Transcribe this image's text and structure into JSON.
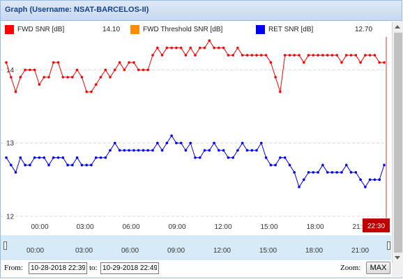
{
  "window": {
    "title": "Graph (Username: NSAT-BARCELOS-II)"
  },
  "legend": [
    {
      "name": "FWD SNR [dB]",
      "value": "14.10",
      "color": "#ff0000"
    },
    {
      "name": "FWD Threshold SNR [dB]",
      "value": "",
      "color": "#ff8c00"
    },
    {
      "name": "RET SNR [dB]",
      "value": "12.70",
      "color": "#0000ff"
    }
  ],
  "chart_data": {
    "type": "line",
    "ylim": [
      11.97,
      14.45
    ],
    "y_ticks": [
      "14",
      "13",
      "12"
    ],
    "x_tick_labels": [
      "00:00",
      "03:00",
      "06:00",
      "09:00",
      "12:00",
      "15:00",
      "18:00",
      "21:00"
    ],
    "cursor_label": "22:30",
    "grid": true,
    "series": [
      {
        "name": "FWD SNR [dB]",
        "color": "#ff0000",
        "x": [
          "20:00",
          "20:20",
          "20:40",
          "21:00",
          "21:20",
          "21:40",
          "22:00",
          "22:20",
          "22:40",
          "23:00",
          "23:20",
          "23:40",
          "00:00",
          "00:20",
          "00:40",
          "01:00",
          "01:20",
          "01:40",
          "02:00",
          "02:20",
          "02:40",
          "03:00",
          "03:20",
          "03:40",
          "04:00",
          "04:20",
          "04:40",
          "05:00",
          "05:20",
          "05:40",
          "06:00",
          "06:20",
          "06:40",
          "07:00",
          "07:20",
          "07:40",
          "08:00",
          "08:20",
          "08:40",
          "09:00",
          "09:20",
          "09:40",
          "10:00",
          "10:20",
          "10:40",
          "11:00",
          "11:20",
          "11:40",
          "12:00",
          "12:20",
          "12:40",
          "13:00",
          "13:20",
          "13:40",
          "14:00",
          "14:20",
          "14:40",
          "15:00",
          "15:20",
          "15:40",
          "16:00",
          "16:20",
          "16:40",
          "17:00",
          "17:20",
          "17:40",
          "18:00",
          "18:20",
          "18:40",
          "19:00",
          "19:20",
          "19:40",
          "20:00",
          "20:20",
          "20:40",
          "21:00",
          "21:20",
          "21:40",
          "22:00",
          "22:20",
          "22:40"
        ],
        "values": [
          14.1,
          13.9,
          13.7,
          13.9,
          14.0,
          14.0,
          14.0,
          13.8,
          13.9,
          13.9,
          14.1,
          14.1,
          13.9,
          13.9,
          13.9,
          14.0,
          13.9,
          13.7,
          13.7,
          13.8,
          13.9,
          14.0,
          13.9,
          14.0,
          14.1,
          14.0,
          14.1,
          14.1,
          14.0,
          14.0,
          14.0,
          14.2,
          14.3,
          14.2,
          14.3,
          14.3,
          14.3,
          14.3,
          14.2,
          14.3,
          14.2,
          14.3,
          14.3,
          14.4,
          14.3,
          14.3,
          14.3,
          14.2,
          14.2,
          14.3,
          14.2,
          14.2,
          14.2,
          14.2,
          14.2,
          14.2,
          14.1,
          13.9,
          13.7,
          14.2,
          14.2,
          14.2,
          14.2,
          14.1,
          14.2,
          14.2,
          14.2,
          14.2,
          14.2,
          14.2,
          14.2,
          14.1,
          14.2,
          14.2,
          14.2,
          14.1,
          14.2,
          14.2,
          14.2,
          14.1,
          14.1
        ]
      },
      {
        "name": "RET SNR [dB]",
        "color": "#0000ff",
        "x": [
          "20:00",
          "20:20",
          "20:40",
          "21:00",
          "21:20",
          "21:40",
          "22:00",
          "22:20",
          "22:40",
          "23:00",
          "23:20",
          "23:40",
          "00:00",
          "00:20",
          "00:40",
          "01:00",
          "01:20",
          "01:40",
          "02:00",
          "02:20",
          "02:40",
          "03:00",
          "03:20",
          "03:40",
          "04:00",
          "04:20",
          "04:40",
          "05:00",
          "05:20",
          "05:40",
          "06:00",
          "06:20",
          "06:40",
          "07:00",
          "07:20",
          "07:40",
          "08:00",
          "08:20",
          "08:40",
          "09:00",
          "09:20",
          "09:40",
          "10:00",
          "10:20",
          "10:40",
          "11:00",
          "11:20",
          "11:40",
          "12:00",
          "12:20",
          "12:40",
          "13:00",
          "13:20",
          "13:40",
          "14:00",
          "14:20",
          "14:40",
          "15:00",
          "15:20",
          "15:40",
          "16:00",
          "16:20",
          "16:40",
          "17:00",
          "17:20",
          "17:40",
          "18:00",
          "18:20",
          "18:40",
          "19:00",
          "19:20",
          "19:40",
          "20:00",
          "20:20",
          "20:40",
          "21:00",
          "21:20",
          "21:40",
          "22:00",
          "22:20",
          "22:40"
        ],
        "values": [
          12.8,
          12.7,
          12.6,
          12.8,
          12.7,
          12.7,
          12.8,
          12.8,
          12.8,
          12.7,
          12.8,
          12.8,
          12.8,
          12.7,
          12.7,
          12.8,
          12.7,
          12.7,
          12.7,
          12.8,
          12.8,
          12.8,
          12.9,
          13.0,
          12.9,
          12.9,
          12.9,
          12.9,
          12.9,
          12.9,
          12.9,
          12.9,
          13.0,
          12.9,
          13.0,
          13.1,
          13.0,
          13.0,
          12.9,
          13.0,
          12.8,
          12.8,
          12.9,
          12.9,
          13.0,
          12.9,
          12.9,
          12.8,
          12.8,
          12.9,
          13.0,
          12.9,
          12.9,
          12.9,
          13.0,
          12.8,
          12.7,
          12.7,
          12.8,
          12.8,
          12.7,
          12.6,
          12.4,
          12.5,
          12.6,
          12.6,
          12.6,
          12.7,
          12.6,
          12.6,
          12.6,
          12.6,
          12.7,
          12.6,
          12.6,
          12.5,
          12.4,
          12.5,
          12.5,
          12.5,
          12.7
        ]
      }
    ]
  },
  "navigator": {
    "tick_labels": [
      "00:00",
      "03:00",
      "06:00",
      "09:00",
      "12:00",
      "15:00",
      "18:00",
      "21:00"
    ]
  },
  "footer": {
    "from_label": "From:",
    "from_value": "10-28-2018 22:39",
    "to_label": "to:",
    "to_value": "10-29-2018 22:49",
    "zoom_label": "Zoom:",
    "zoom_button": "MAX"
  }
}
